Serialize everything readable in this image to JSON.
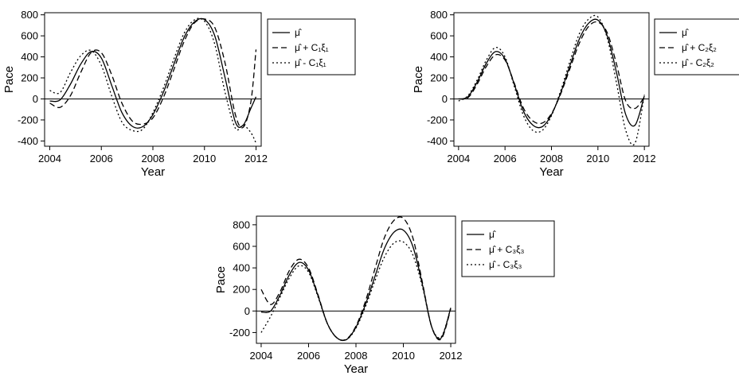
{
  "chart_data": [
    {
      "type": "line",
      "xlabel": "Year",
      "ylabel": "Pace",
      "xlim": [
        2003.8,
        2012.2
      ],
      "ylim": [
        -450,
        820
      ],
      "xticks": [
        2004,
        2006,
        2008,
        2010,
        2012
      ],
      "xtick_labels": [
        "2004",
        "2006",
        "2008",
        "2010",
        "2012"
      ],
      "yticks": [
        -400,
        -200,
        0,
        200,
        400,
        600,
        800
      ],
      "ytick_labels": [
        "-400",
        "-200",
        "0",
        "200",
        "400",
        "600",
        "800"
      ],
      "legend": {
        "position": "right",
        "entries": [
          "μ̂",
          "μ̂ + C₁ξ₁",
          "μ̂ - C₁ξ₁"
        ]
      },
      "series": [
        {
          "style": "solid",
          "x": [
            2004,
            2004.4,
            2004.8,
            2005.2,
            2005.6,
            2006.0,
            2006.4,
            2006.8,
            2007.2,
            2007.6,
            2008.0,
            2008.4,
            2008.8,
            2009.2,
            2009.6,
            2010.0,
            2010.4,
            2010.8,
            2011.2,
            2011.5,
            2011.8,
            2012.0
          ],
          "y": [
            -20,
            -10,
            140,
            330,
            450,
            390,
            130,
            -130,
            -260,
            -265,
            -150,
            60,
            320,
            580,
            730,
            755,
            600,
            200,
            -220,
            -250,
            -90,
            20
          ]
        },
        {
          "style": "dashed",
          "x": [
            2004,
            2004.4,
            2004.8,
            2005.2,
            2005.6,
            2006.0,
            2006.4,
            2006.8,
            2007.2,
            2007.6,
            2008.0,
            2008.4,
            2008.8,
            2009.2,
            2009.6,
            2010.0,
            2010.4,
            2010.8,
            2011.2,
            2011.5,
            2011.8,
            2012.0
          ],
          "y": [
            -40,
            -80,
            30,
            250,
            440,
            440,
            230,
            -40,
            -210,
            -240,
            -180,
            10,
            270,
            540,
            720,
            760,
            680,
            340,
            -150,
            -270,
            -30,
            470
          ]
        },
        {
          "style": "dotted",
          "x": [
            2004,
            2004.4,
            2004.8,
            2005.2,
            2005.6,
            2006.0,
            2006.4,
            2006.8,
            2007.2,
            2007.6,
            2008.0,
            2008.4,
            2008.8,
            2009.2,
            2009.6,
            2010.0,
            2010.4,
            2010.8,
            2011.2,
            2011.5,
            2011.8,
            2012.0
          ],
          "y": [
            80,
            60,
            250,
            410,
            460,
            320,
            30,
            -220,
            -300,
            -290,
            -130,
            100,
            370,
            620,
            750,
            740,
            520,
            60,
            -280,
            -250,
            -320,
            -420
          ]
        }
      ]
    },
    {
      "type": "line",
      "xlabel": "Year",
      "ylabel": "Pace",
      "xlim": [
        2003.8,
        2012.2
      ],
      "ylim": [
        -450,
        820
      ],
      "xticks": [
        2004,
        2006,
        2008,
        2010,
        2012
      ],
      "xtick_labels": [
        "2004",
        "2006",
        "2008",
        "2010",
        "2012"
      ],
      "yticks": [
        -400,
        -200,
        0,
        200,
        400,
        600,
        800
      ],
      "ytick_labels": [
        "-400",
        "-200",
        "0",
        "200",
        "400",
        "600",
        "800"
      ],
      "legend": {
        "position": "right",
        "entries": [
          "μ̂",
          "μ̂ + C₂ξ₂",
          "μ̂ - C₂ξ₂"
        ]
      },
      "series": [
        {
          "style": "solid",
          "x": [
            2004,
            2004.4,
            2004.8,
            2005.2,
            2005.6,
            2006.0,
            2006.4,
            2006.8,
            2007.2,
            2007.6,
            2008.0,
            2008.4,
            2008.8,
            2009.2,
            2009.6,
            2010.0,
            2010.4,
            2010.8,
            2011.2,
            2011.6,
            2012.0
          ],
          "y": [
            0,
            20,
            160,
            340,
            450,
            380,
            140,
            -120,
            -250,
            -265,
            -150,
            60,
            320,
            570,
            720,
            750,
            600,
            250,
            -150,
            -250,
            30
          ]
        },
        {
          "style": "dashed",
          "x": [
            2004,
            2004.4,
            2004.8,
            2005.2,
            2005.6,
            2006.0,
            2006.4,
            2006.8,
            2007.2,
            2007.6,
            2008.0,
            2008.4,
            2008.8,
            2009.2,
            2009.6,
            2010.0,
            2010.4,
            2010.8,
            2011.2,
            2011.6,
            2012.0
          ],
          "y": [
            0,
            10,
            140,
            310,
            420,
            370,
            150,
            -90,
            -210,
            -230,
            -140,
            50,
            290,
            530,
            690,
            730,
            630,
            330,
            -20,
            -90,
            20
          ]
        },
        {
          "style": "dotted",
          "x": [
            2004,
            2004.4,
            2004.8,
            2005.2,
            2005.6,
            2006.0,
            2006.4,
            2006.8,
            2007.2,
            2007.6,
            2008.0,
            2008.4,
            2008.8,
            2009.2,
            2009.6,
            2010.0,
            2010.4,
            2010.8,
            2011.2,
            2011.6,
            2012.0
          ],
          "y": [
            -20,
            30,
            180,
            370,
            490,
            400,
            120,
            -160,
            -300,
            -300,
            -160,
            80,
            360,
            620,
            760,
            780,
            580,
            150,
            -300,
            -420,
            40
          ]
        }
      ]
    },
    {
      "type": "line",
      "xlabel": "Year",
      "ylabel": "Pace",
      "xlim": [
        2003.8,
        2012.2
      ],
      "ylim": [
        -300,
        880
      ],
      "xticks": [
        2004,
        2006,
        2008,
        2010,
        2012
      ],
      "xtick_labels": [
        "2004",
        "2006",
        "2008",
        "2010",
        "2012"
      ],
      "yticks": [
        -200,
        0,
        200,
        400,
        600,
        800
      ],
      "ytick_labels": [
        "-200",
        "0",
        "200",
        "400",
        "600",
        "800"
      ],
      "legend": {
        "position": "right",
        "entries": [
          "μ̂",
          "μ̂ + C₃ξ₃",
          "μ̂ - C₃ξ₃"
        ]
      },
      "series": [
        {
          "style": "solid",
          "x": [
            2004,
            2004.4,
            2004.8,
            2005.2,
            2005.6,
            2006.0,
            2006.4,
            2006.8,
            2007.2,
            2007.6,
            2008.0,
            2008.4,
            2008.8,
            2009.2,
            2009.6,
            2010.0,
            2010.4,
            2010.8,
            2011.2,
            2011.6,
            2012.0
          ],
          "y": [
            -10,
            0,
            150,
            340,
            450,
            380,
            140,
            -120,
            -250,
            -265,
            -150,
            60,
            320,
            580,
            730,
            750,
            600,
            250,
            -150,
            -250,
            30
          ]
        },
        {
          "style": "dashed",
          "x": [
            2004,
            2004.4,
            2004.8,
            2005.2,
            2005.6,
            2006.0,
            2006.4,
            2006.8,
            2007.2,
            2007.6,
            2008.0,
            2008.4,
            2008.8,
            2009.2,
            2009.6,
            2010.0,
            2010.4,
            2010.8,
            2011.2,
            2011.6,
            2012.0
          ],
          "y": [
            200,
            60,
            180,
            380,
            480,
            400,
            150,
            -120,
            -250,
            -260,
            -140,
            90,
            390,
            680,
            840,
            860,
            680,
            270,
            -150,
            -260,
            20
          ]
        },
        {
          "style": "dotted",
          "x": [
            2004,
            2004.4,
            2004.8,
            2005.2,
            2005.6,
            2006.0,
            2006.4,
            2006.8,
            2007.2,
            2007.6,
            2008.0,
            2008.4,
            2008.8,
            2009.2,
            2009.6,
            2010.0,
            2010.4,
            2010.8,
            2011.2,
            2011.6,
            2012.0
          ],
          "y": [
            -200,
            -50,
            130,
            310,
            420,
            360,
            130,
            -120,
            -250,
            -265,
            -160,
            40,
            280,
            500,
            630,
            640,
            520,
            230,
            -150,
            -240,
            30
          ]
        }
      ]
    }
  ]
}
